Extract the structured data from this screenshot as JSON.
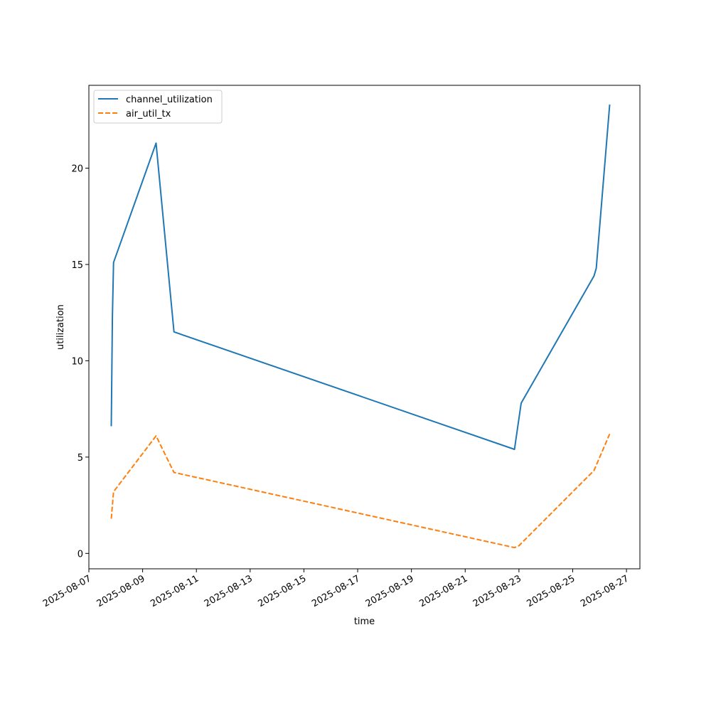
{
  "chart_data": {
    "type": "line",
    "title": "",
    "xlabel": "time",
    "ylabel": "utilization",
    "x_type": "date",
    "xlim": [
      "2025-08-07T00:00",
      "2025-08-27T12:00"
    ],
    "ylim": [
      -0.8,
      24.3
    ],
    "xticks": [
      "2025-08-07",
      "2025-08-09",
      "2025-08-11",
      "2025-08-13",
      "2025-08-15",
      "2025-08-17",
      "2025-08-19",
      "2025-08-21",
      "2025-08-23",
      "2025-08-25",
      "2025-08-27"
    ],
    "yticks": [
      0,
      5,
      10,
      15,
      20
    ],
    "grid": false,
    "legend_position": "upper-left",
    "series": [
      {
        "name": "channel_utilization",
        "color": "#1f77b4",
        "linestyle": "solid",
        "points": [
          {
            "x": "2025-08-07T20:00",
            "y": 6.6
          },
          {
            "x": "2025-08-07T21:00",
            "y": 12.3
          },
          {
            "x": "2025-08-07T22:00",
            "y": 15.1
          },
          {
            "x": "2025-08-09T12:00",
            "y": 21.3
          },
          {
            "x": "2025-08-10T04:00",
            "y": 11.5
          },
          {
            "x": "2025-08-22T20:00",
            "y": 5.4
          },
          {
            "x": "2025-08-23T02:00",
            "y": 7.8
          },
          {
            "x": "2025-08-25T19:00",
            "y": 14.4
          },
          {
            "x": "2025-08-25T21:00",
            "y": 14.8
          },
          {
            "x": "2025-08-26T09:00",
            "y": 23.3
          }
        ]
      },
      {
        "name": "air_util_tx",
        "color": "#ff7f0e",
        "linestyle": "dashed",
        "points": [
          {
            "x": "2025-08-07T20:00",
            "y": 1.8
          },
          {
            "x": "2025-08-07T22:00",
            "y": 3.2
          },
          {
            "x": "2025-08-09T12:00",
            "y": 6.1
          },
          {
            "x": "2025-08-10T04:00",
            "y": 4.2
          },
          {
            "x": "2025-08-22T20:00",
            "y": 0.3
          },
          {
            "x": "2025-08-23T00:00",
            "y": 0.4
          },
          {
            "x": "2025-08-25T19:00",
            "y": 4.3
          },
          {
            "x": "2025-08-26T09:00",
            "y": 6.2
          }
        ]
      }
    ]
  }
}
